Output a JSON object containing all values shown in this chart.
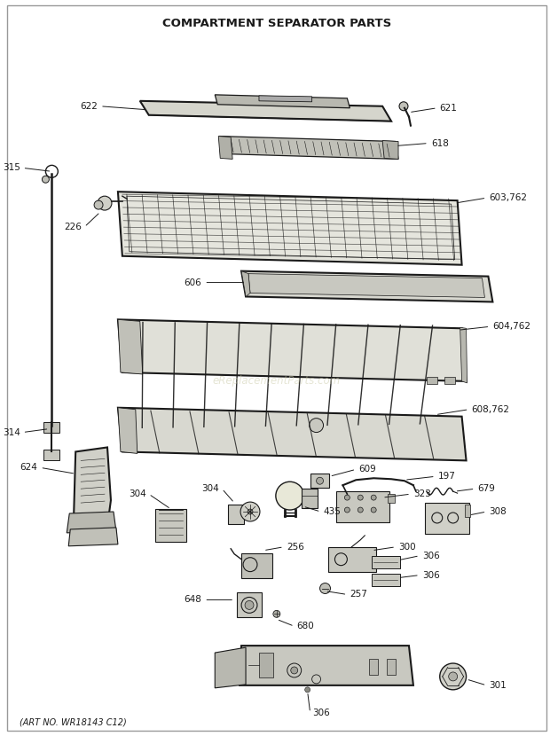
{
  "title": "COMPARTMENT SEPARATOR PARTS",
  "art_no": "(ART NO. WR18143 C12)",
  "watermark": "eReplacementParts.com",
  "bg_color": "#ffffff",
  "line_color": "#1a1a1a",
  "label_color": "#1a1a1a",
  "title_fontsize": 9.5,
  "label_fontsize": 7.5,
  "border_color": "#aaaaaa"
}
